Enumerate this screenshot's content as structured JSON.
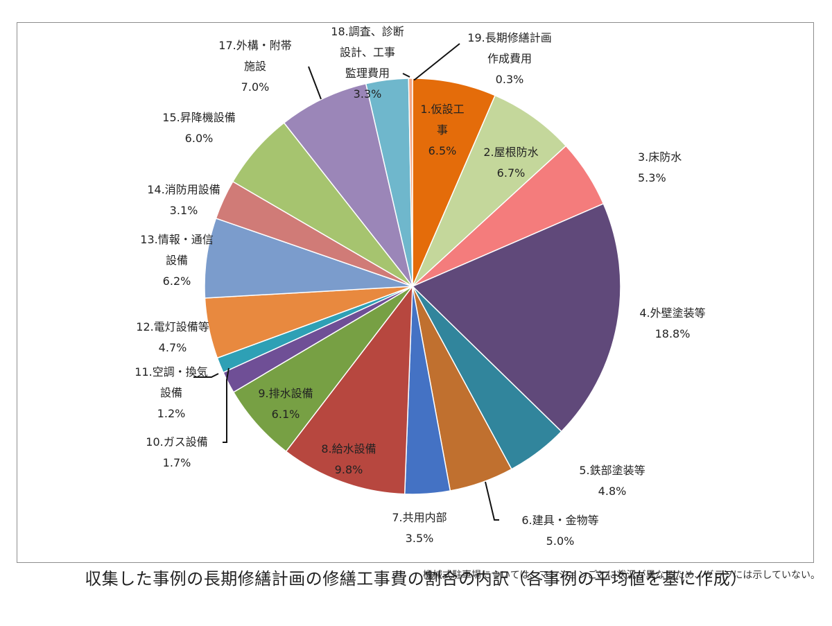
{
  "chart_data": {
    "type": "pie",
    "start_angle_deg": 0,
    "direction": "clockwise",
    "slices": [
      {
        "label": "1.仮設工事",
        "label_lines": [
          "1.仮設工",
          "事"
        ],
        "value": 6.5,
        "value_text": "6.5%",
        "color": "#e46c0a"
      },
      {
        "label": "2.屋根防水",
        "label_lines": [
          "2.屋根防水"
        ],
        "value": 6.7,
        "value_text": "6.7%",
        "color": "#c4d79b"
      },
      {
        "label": "3.床防水",
        "label_lines": [
          "3.床防水"
        ],
        "value": 5.3,
        "value_text": "5.3%",
        "color": "#f47c7c"
      },
      {
        "label": "4.外壁塗装等",
        "label_lines": [
          "4.外壁塗装等"
        ],
        "value": 18.8,
        "value_text": "18.8%",
        "color": "#60497a"
      },
      {
        "label": "5.鉄部塗装等",
        "label_lines": [
          "5.鉄部塗装等"
        ],
        "value": 4.8,
        "value_text": "4.8%",
        "color": "#31859c"
      },
      {
        "label": "6.建具・金物等",
        "label_lines": [
          "6.建具・金物等"
        ],
        "value": 5.0,
        "value_text": "5.0%",
        "color": "#c0702f"
      },
      {
        "label": "7.共用内部",
        "label_lines": [
          "7.共用内部"
        ],
        "value": 3.5,
        "value_text": "3.5%",
        "color": "#4472c4"
      },
      {
        "label": "8.給水設備",
        "label_lines": [
          "8.給水設備"
        ],
        "value": 9.8,
        "value_text": "9.8%",
        "color": "#b7473f"
      },
      {
        "label": "9.排水設備",
        "label_lines": [
          "9.排水設備"
        ],
        "value": 6.1,
        "value_text": "6.1%",
        "color": "#77a044"
      },
      {
        "label": "10.ガス設備",
        "label_lines": [
          "10.ガス設備"
        ],
        "value": 1.7,
        "value_text": "1.7%",
        "color": "#6f4f96"
      },
      {
        "label": "11.空調・換気設備",
        "label_lines": [
          "11.空調・換気",
          "設備"
        ],
        "value": 1.2,
        "value_text": "1.2%",
        "color": "#2ea0b5"
      },
      {
        "label": "12.電灯設備等",
        "label_lines": [
          "12.電灯設備等"
        ],
        "value": 4.7,
        "value_text": "4.7%",
        "color": "#e8893f"
      },
      {
        "label": "13.情報・通信設備",
        "label_lines": [
          "13.情報・通信",
          "設備"
        ],
        "value": 6.2,
        "value_text": "6.2%",
        "color": "#7b9ccc"
      },
      {
        "label": "14.消防用設備",
        "label_lines": [
          "14.消防用設備"
        ],
        "value": 3.1,
        "value_text": "3.1%",
        "color": "#d07b77"
      },
      {
        "label": "15.昇降機設備",
        "label_lines": [
          "15.昇降機設備"
        ],
        "value": 6.0,
        "value_text": "6.0%",
        "color": "#a6c46f"
      },
      {
        "label": "17.外構・附帯施設",
        "label_lines": [
          "17.外構・附帯",
          "施設"
        ],
        "value": 7.0,
        "value_text": "7.0%",
        "color": "#9b86b8"
      },
      {
        "label": "18.調査、診断設計、工事監理費用",
        "label_lines": [
          "18.調査、診断",
          "設計、工事",
          "監理費用"
        ],
        "value": 3.3,
        "value_text": "3.3%",
        "color": "#6fb7cc"
      },
      {
        "label": "19.長期修繕計画作成費用",
        "label_lines": [
          "19.長期修繕計画",
          "作成費用"
        ],
        "value": 0.3,
        "value_text": "0.3%",
        "color": "#f4a582"
      }
    ]
  },
  "footnote": "機械式駐車場については、マンションごとに状況が異なるため、グラフには示していない。",
  "caption": "収集した事例の長期修繕計画の修繕工事費の割合の内訳（各事例の平均値を基に作成）"
}
